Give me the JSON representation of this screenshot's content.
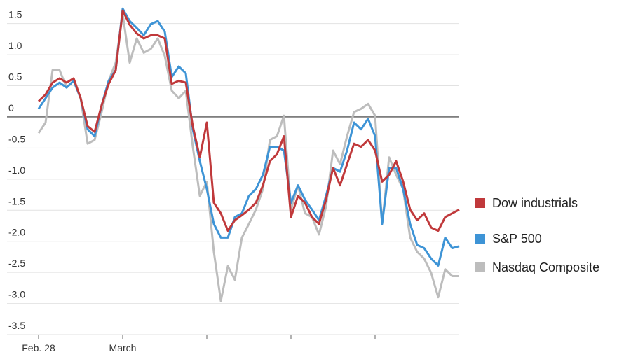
{
  "chart_data": {
    "type": "line",
    "x": [
      0,
      1,
      2,
      3,
      4,
      5,
      6,
      7,
      8,
      9,
      10,
      11,
      12,
      13,
      14,
      15,
      16,
      17,
      18,
      19,
      20,
      21,
      22,
      23,
      24,
      25,
      26,
      27,
      28,
      29,
      30,
      31,
      32,
      33,
      34,
      35,
      36,
      37,
      38,
      39,
      40,
      41,
      42,
      43,
      44,
      45,
      46,
      47,
      48,
      49,
      50,
      51,
      52,
      53,
      54,
      55,
      56,
      57,
      58,
      59,
      60
    ],
    "xlim": [
      0,
      60
    ],
    "xticks": [
      {
        "value": 0,
        "label": "Feb. 28"
      },
      {
        "value": 12,
        "label": "March"
      },
      {
        "value": 24,
        "label": null
      },
      {
        "value": 36,
        "label": null
      },
      {
        "value": 48,
        "label": null
      }
    ],
    "ylim": [
      -3.5,
      1.8
    ],
    "yticks": [
      -3.5,
      {
        "value": -3,
        "label": "-3.0"
      },
      -2.5,
      {
        "value": -2,
        "label": "-2.0"
      },
      -1.5,
      {
        "value": -1,
        "label": "-1.0"
      },
      -0.5,
      0,
      0.5,
      {
        "value": 1,
        "label": "1.0"
      },
      1.5
    ],
    "grid": true,
    "legend": "right",
    "series": [
      {
        "name": "Dow industrials",
        "color": "#c0393b",
        "values": [
          0.25,
          0.36,
          0.55,
          0.62,
          0.55,
          0.62,
          0.3,
          -0.15,
          -0.24,
          0.19,
          0.53,
          0.75,
          1.71,
          1.48,
          1.34,
          1.26,
          1.31,
          1.31,
          1.26,
          0.53,
          0.58,
          0.55,
          -0.15,
          -0.65,
          -0.09,
          -1.38,
          -1.55,
          -1.83,
          -1.66,
          -1.58,
          -1.49,
          -1.38,
          -1.1,
          -0.71,
          -0.6,
          -0.31,
          -1.61,
          -1.27,
          -1.38,
          -1.61,
          -1.72,
          -1.33,
          -0.82,
          -1.1,
          -0.76,
          -0.43,
          -0.48,
          -0.37,
          -0.54,
          -1.04,
          -0.93,
          -0.71,
          -1.04,
          -1.49,
          -1.66,
          -1.55,
          -1.78,
          -1.83,
          -1.61,
          -1.55,
          -1.49
        ]
      },
      {
        "name": "S&P 500",
        "color": "#3e94d6",
        "values": [
          0.13,
          0.3,
          0.47,
          0.55,
          0.47,
          0.58,
          0.3,
          -0.2,
          -0.31,
          0.19,
          0.58,
          0.75,
          1.74,
          1.54,
          1.43,
          1.31,
          1.49,
          1.54,
          1.37,
          0.64,
          0.81,
          0.7,
          -0.2,
          -0.71,
          -1.16,
          -1.72,
          -1.94,
          -1.94,
          -1.61,
          -1.55,
          -1.27,
          -1.16,
          -0.93,
          -0.48,
          -0.48,
          -0.54,
          -1.38,
          -1.1,
          -1.33,
          -1.49,
          -1.66,
          -1.27,
          -0.82,
          -0.88,
          -0.54,
          -0.09,
          -0.2,
          -0.03,
          -0.31,
          -1.72,
          -0.82,
          -0.82,
          -1.16,
          -1.72,
          -2.06,
          -2.11,
          -2.28,
          -2.39,
          -1.94,
          -2.11,
          -2.08
        ]
      },
      {
        "name": "Nasdaq Composite",
        "color": "#bdbdbd",
        "values": [
          -0.26,
          -0.09,
          0.75,
          0.75,
          0.47,
          0.58,
          0.3,
          -0.43,
          -0.37,
          0.08,
          0.58,
          0.87,
          1.65,
          0.87,
          1.26,
          1.03,
          1.09,
          1.26,
          0.98,
          0.42,
          0.3,
          0.42,
          -0.48,
          -1.27,
          -1.04,
          -2.17,
          -2.96,
          -2.4,
          -2.62,
          -1.94,
          -1.72,
          -1.49,
          -1.16,
          -0.37,
          -0.31,
          0.02,
          -1.49,
          -1.1,
          -1.55,
          -1.61,
          -1.89,
          -1.44,
          -0.54,
          -0.76,
          -0.31,
          0.08,
          0.13,
          0.21,
          0.02,
          -1.72,
          -0.65,
          -0.93,
          -1.16,
          -1.94,
          -2.17,
          -2.28,
          -2.51,
          -2.9,
          -2.45,
          -2.56,
          -2.56
        ]
      }
    ]
  }
}
